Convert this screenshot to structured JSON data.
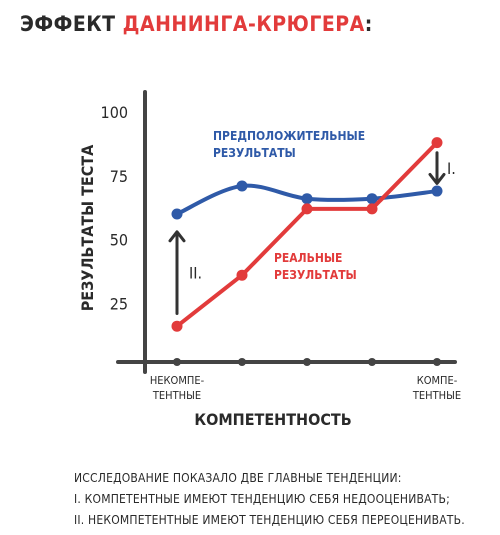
{
  "title": {
    "prefix": "ЭФФЕКТ",
    "highlight": "ДАННИНГА-КРЮГЕРА",
    "suffix": ":"
  },
  "chart_data": {
    "type": "line",
    "ylabel": "РЕЗУЛЬТАТЫ ТЕСТА",
    "xlabel": "КОМПЕТЕНТНОСТЬ",
    "y_ticks": [
      "25",
      "50",
      "75",
      "100"
    ],
    "ylim": [
      0,
      100
    ],
    "xlim": [
      0,
      6
    ],
    "x": [
      1,
      2,
      3,
      4,
      5
    ],
    "x_tick_labels": [
      {
        "x": 1,
        "lines": [
          "НЕКОМПЕ-",
          "ТЕНТНЫЕ"
        ]
      },
      {
        "x": 5,
        "lines": [
          "КОМПЕ-",
          "ТЕНТНЫЕ"
        ]
      }
    ],
    "series": [
      {
        "name": "ПРЕДПОЛОЖИТЕЛЬНЫЕ РЕЗУЛЬТАТЫ",
        "name_lines": [
          "ПРЕДПОЛОЖИТЕЛЬНЫЕ",
          "РЕЗУЛЬТАТЫ"
        ],
        "color": "#2f5aa8",
        "values": [
          60,
          71,
          66,
          66,
          69
        ]
      },
      {
        "name": "РЕАЛЬНЫЕ РЕЗУЛЬТАТЫ",
        "name_lines": [
          "РЕАЛЬНЫЕ",
          "РЕЗУЛЬТАТЫ"
        ],
        "color": "#e23b3b",
        "values": [
          16,
          36,
          62,
          62,
          88
        ]
      }
    ],
    "annotations": [
      {
        "label": "I.",
        "x": 5,
        "from": 84,
        "to": 72
      },
      {
        "label": "II.",
        "x": 1,
        "from": 21,
        "to": 53
      }
    ]
  },
  "footer": {
    "lines": [
      "ИССЛЕДОВАНИЕ ПОКАЗАЛО ДВЕ ГЛАВНЫЕ ТЕНДЕНЦИИ:",
      "I. КОМПЕТЕНТНЫЕ ИМЕЮТ ТЕНДЕНЦИЮ СЕБЯ НЕДООЦЕНИВАТЬ;",
      "II. НЕКОМПЕТЕНТНЫЕ ИМЕЮТ ТЕНДЕНЦИЮ СЕБЯ ПЕРЕОЦЕНИВАТЬ."
    ]
  }
}
